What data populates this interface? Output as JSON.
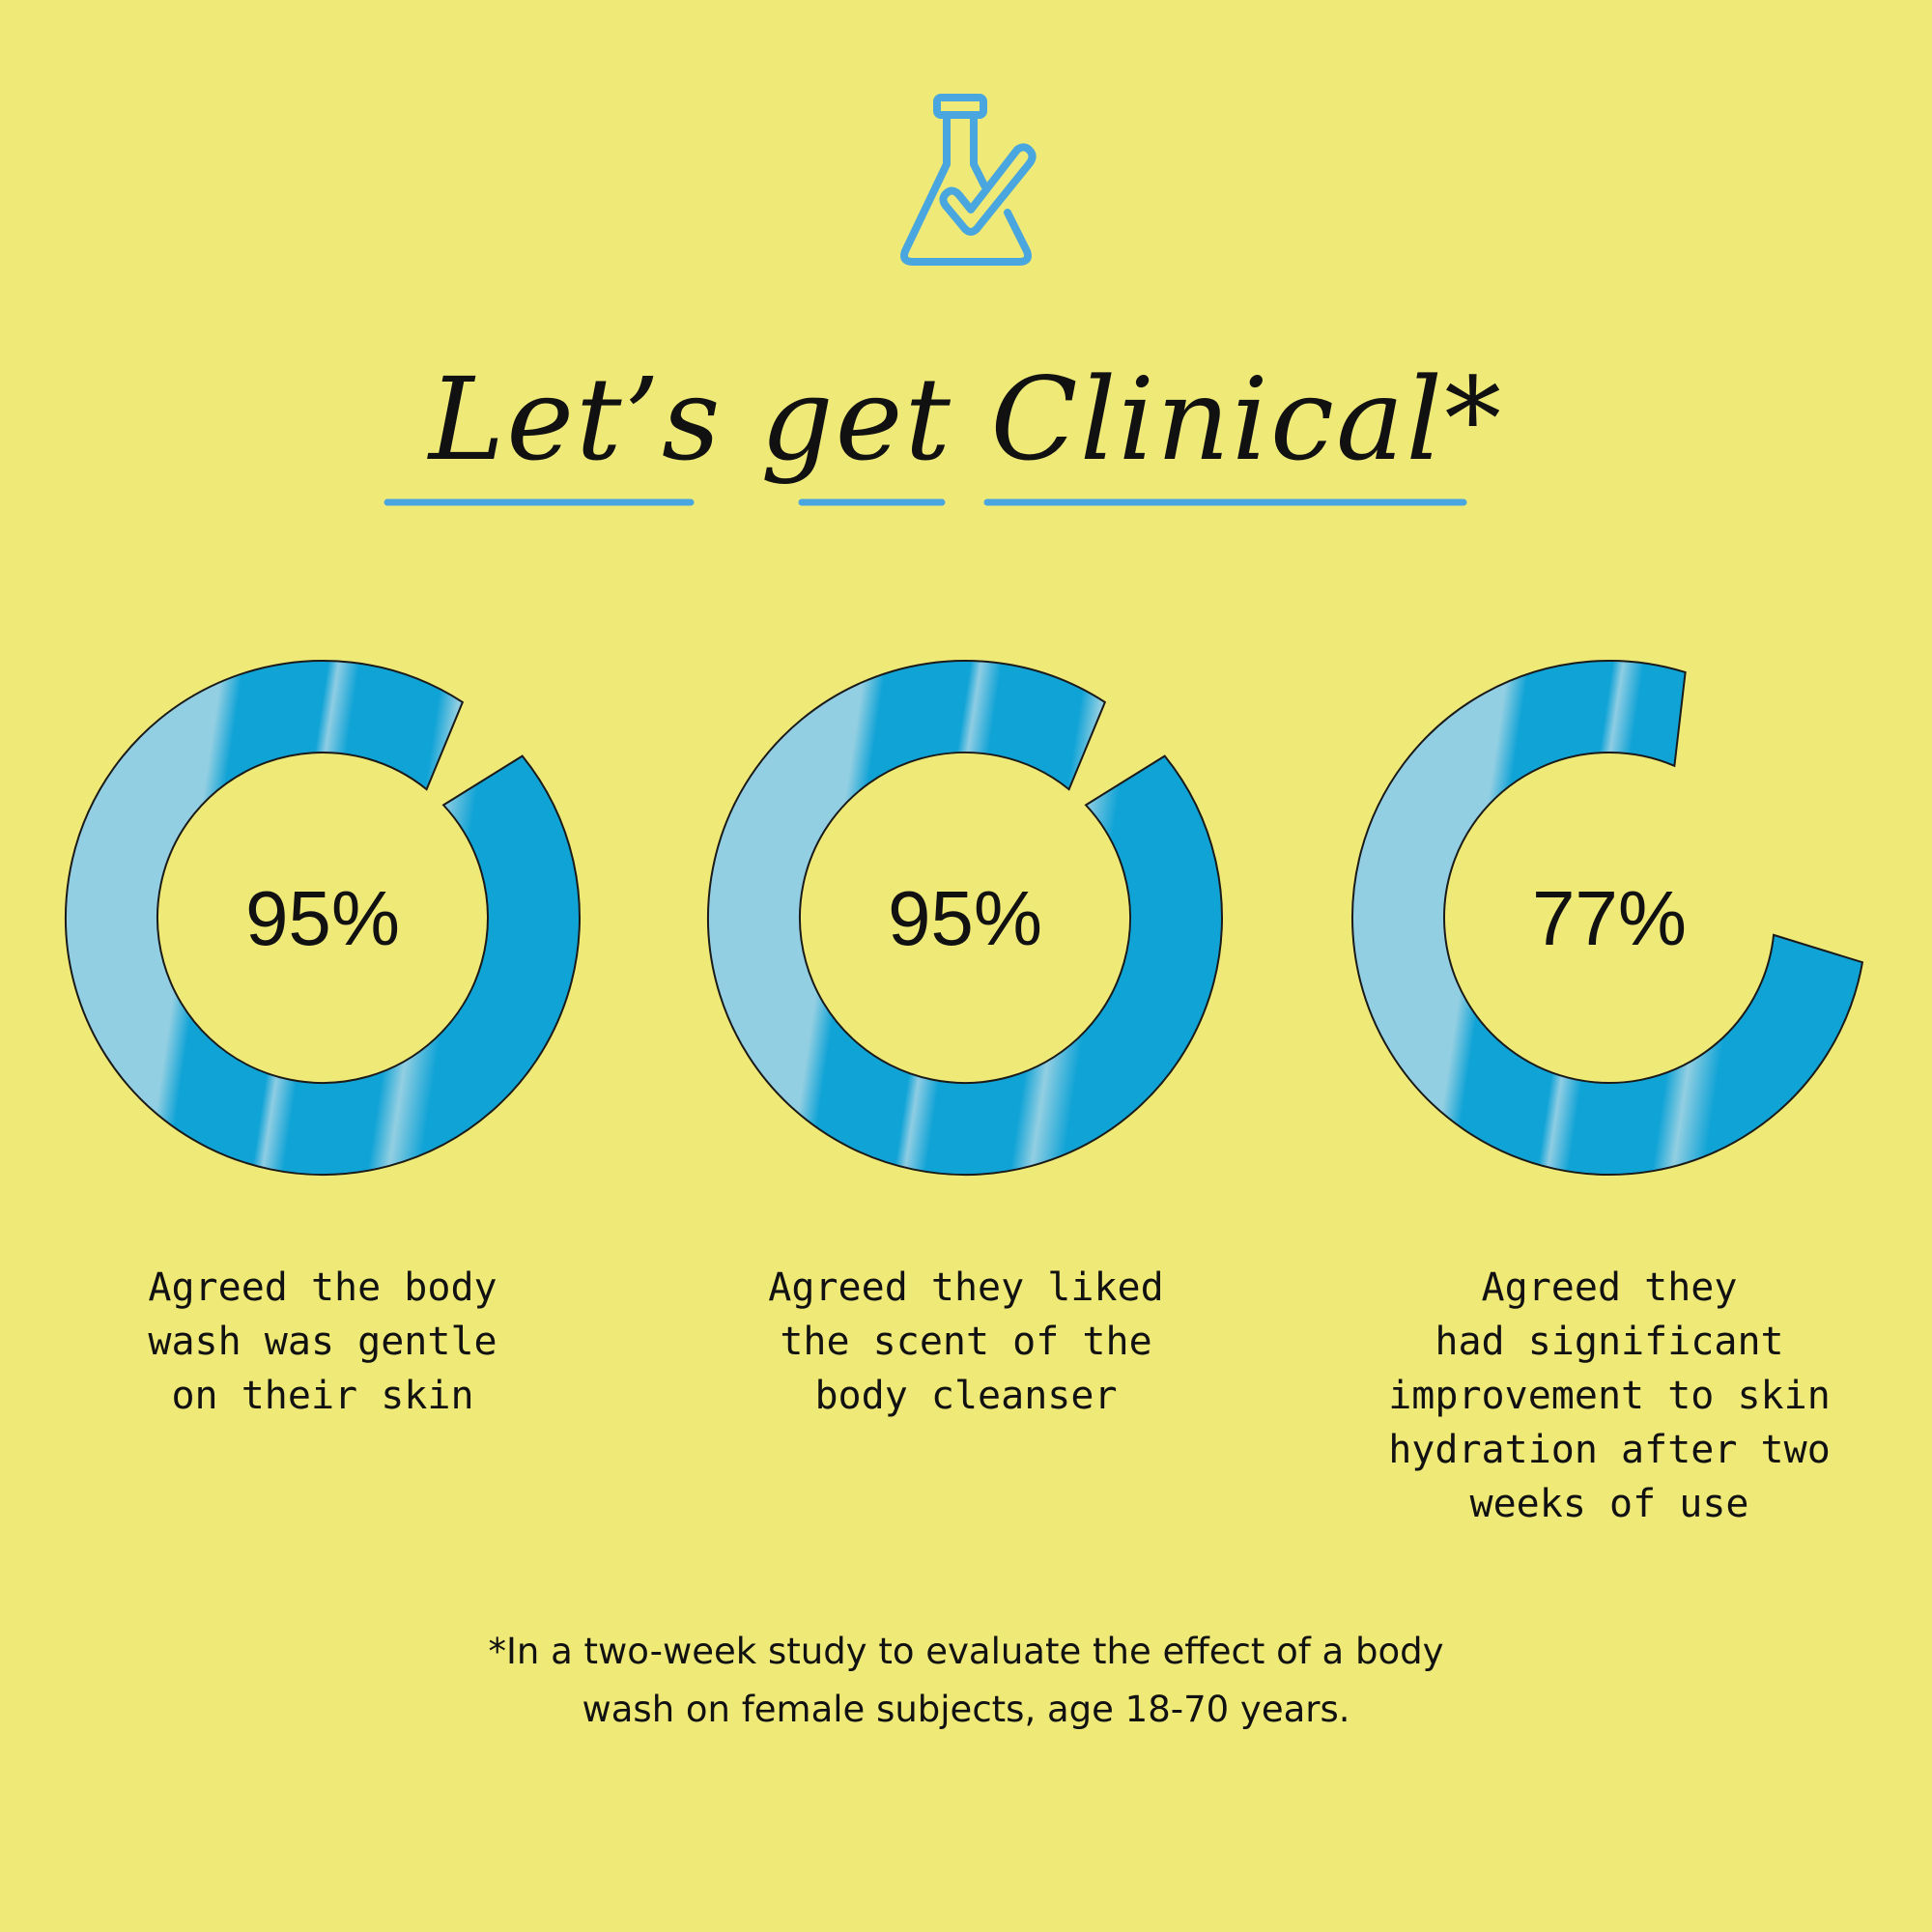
{
  "header": {
    "icon": "flask-check-icon",
    "title_words": [
      "Let’s",
      "get",
      "Clinical*"
    ]
  },
  "colors": {
    "background": "#efea78",
    "ring": "#10a3d6",
    "ring_highlight": "#93cfe2",
    "accent_line": "#4aa6de"
  },
  "chart_data": {
    "type": "pie",
    "subtype": "donut-progress",
    "title": "Let’s get Clinical*",
    "items": [
      {
        "value": 95,
        "label": "95%",
        "description": [
          "Agreed the body",
          "wash was gentle",
          "on their skin"
        ]
      },
      {
        "value": 95,
        "label": "95%",
        "description": [
          "Agreed they liked",
          "the scent of the",
          "body cleanser"
        ]
      },
      {
        "value": 77,
        "label": "77%",
        "description": [
          "Agreed they",
          "had significant",
          "improvement to skin",
          "hydration after two",
          "weeks of use"
        ]
      }
    ]
  },
  "footnote": [
    "*In a two-week study to evaluate the effect of a body",
    "wash on female subjects, age 18-70 years."
  ]
}
